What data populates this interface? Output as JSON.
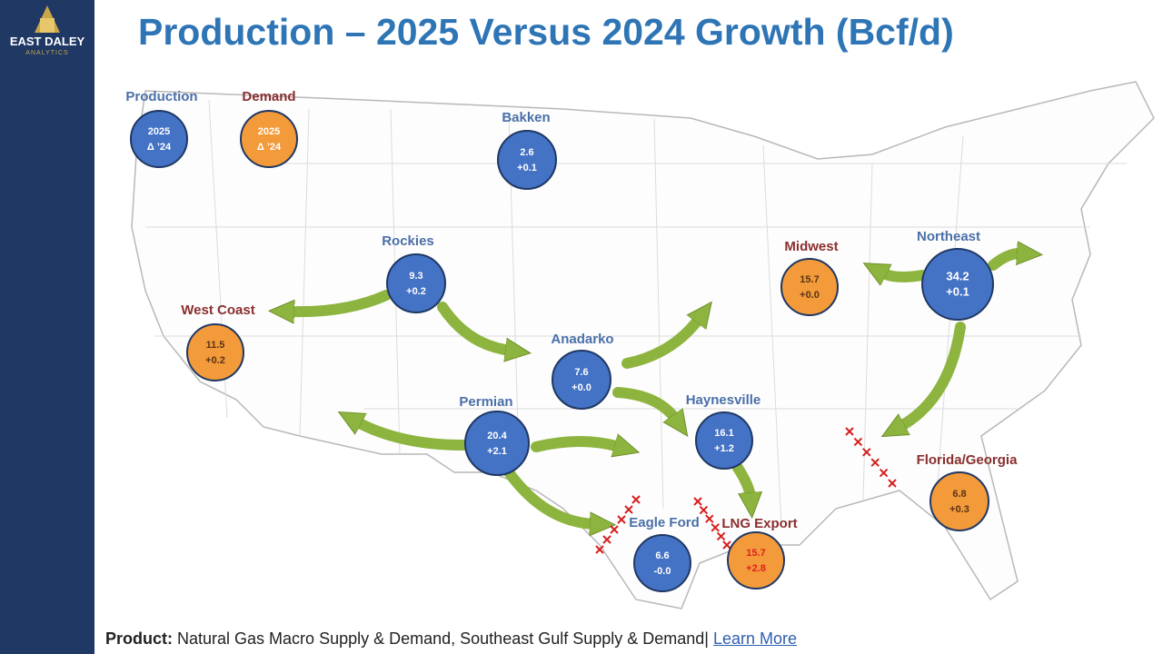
{
  "header": {
    "logo_name": "EAST DALEY",
    "logo_tagline": "ANALYTICS",
    "title": "Production – 2025 Versus 2024 Growth (Bcf/d)"
  },
  "legend": [
    {
      "label": "Production",
      "line1": "2025",
      "line2": "Δ ’24",
      "color": "#4472c4",
      "label_color": "#4a6fa8",
      "text_color": "#ffffff"
    },
    {
      "label": "Demand",
      "line1": "2025",
      "line2": "Δ ’24",
      "color": "#f39a3b",
      "label_color": "#8b2e2e",
      "text_color": "#ffffff"
    }
  ],
  "regions": [
    {
      "name": "Bakken",
      "value": "2.6",
      "change": "+0.1",
      "color": "#4472c4",
      "label_color": "#4a6fa8",
      "text_color": "#ffffff"
    },
    {
      "name": "Rockies",
      "value": "9.3",
      "change": "+0.2",
      "color": "#4472c4",
      "label_color": "#4a6fa8",
      "text_color": "#ffffff"
    },
    {
      "name": "West Coast",
      "value": "11.5",
      "change": "+0.2",
      "color": "#f39a3b",
      "label_color": "#8b2e2e",
      "text_color": "#5a3412"
    },
    {
      "name": "Anadarko",
      "value": "7.6",
      "change": "+0.0",
      "color": "#4472c4",
      "label_color": "#4a6fa8",
      "text_color": "#ffffff"
    },
    {
      "name": "Permian",
      "value": "20.4",
      "change": "+2.1",
      "color": "#4472c4",
      "label_color": "#4a6fa8",
      "text_color": "#ffffff"
    },
    {
      "name": "Haynesville",
      "value": "16.1",
      "change": "+1.2",
      "color": "#4472c4",
      "label_color": "#4a6fa8",
      "text_color": "#ffffff"
    },
    {
      "name": "Eagle Ford",
      "value": "6.6",
      "change": "-0.0",
      "color": "#4472c4",
      "label_color": "#4a6fa8",
      "text_color": "#ffffff"
    },
    {
      "name": "LNG Export",
      "value": "15.7",
      "change": "+2.8",
      "color": "#f39a3b",
      "label_color": "#8b2e2e",
      "text_color": "#e02020"
    },
    {
      "name": "Midwest",
      "value": "15.7",
      "change": "+0.0",
      "color": "#f39a3b",
      "label_color": "#8b2e2e",
      "text_color": "#5a3412"
    },
    {
      "name": "Northeast",
      "value": "34.2",
      "change": "+0.1",
      "color": "#4472c4",
      "label_color": "#4a6fa8",
      "text_color": "#ffffff"
    },
    {
      "name": "Florida/Georgia",
      "value": "6.8",
      "change": "+0.3",
      "color": "#f39a3b",
      "label_color": "#8b2e2e",
      "text_color": "#5a3412"
    }
  ],
  "footer": {
    "label": "Product:",
    "text": "Natural Gas Macro Supply & Demand, Southeast Gulf Supply & Demand|",
    "link": "Learn More"
  }
}
